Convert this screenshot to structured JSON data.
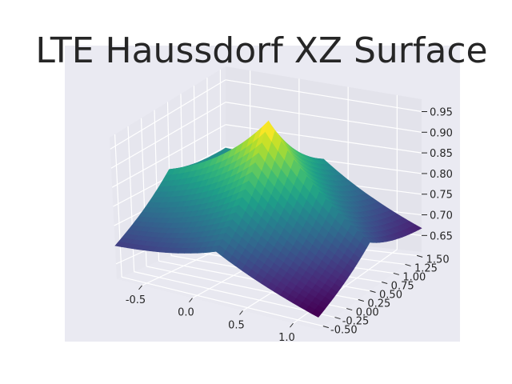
{
  "chart_data": {
    "type": "surface",
    "title": "LTE Haussdorf XZ Surface",
    "colormap": "viridis",
    "grid": true,
    "x_ticks": [
      "-0.5",
      "0.0",
      "0.5",
      "1.0"
    ],
    "y_ticks": [
      "-0.50",
      "-0.25",
      "0.00",
      "0.25",
      "0.50",
      "0.75",
      "1.00",
      "1.25",
      "1.50"
    ],
    "z_ticks": [
      "0.65",
      "0.70",
      "0.75",
      "0.80",
      "0.85",
      "0.90",
      "0.95"
    ],
    "xlim": [
      -0.75,
      1.25
    ],
    "ylim": [
      -0.6,
      1.6
    ],
    "zlim": [
      0.61,
      0.98
    ],
    "surface": {
      "peak": {
        "x": 0.25,
        "y": 0.5,
        "z": 0.97
      },
      "corners": [
        {
          "x": -0.75,
          "y": -0.6,
          "z": 0.66
        },
        {
          "x": 1.25,
          "y": -0.6,
          "z": 0.6
        },
        {
          "x": 1.25,
          "y": 1.6,
          "z": 0.63
        },
        {
          "x": -0.75,
          "y": 1.6,
          "z": 0.76
        }
      ]
    },
    "colors": {
      "low": "#440154",
      "mid": "#21918c",
      "high": "#fde725",
      "axes_bg": "#eaeaf2",
      "pane": "#e6e6ee",
      "grid": "#ffffff"
    }
  }
}
